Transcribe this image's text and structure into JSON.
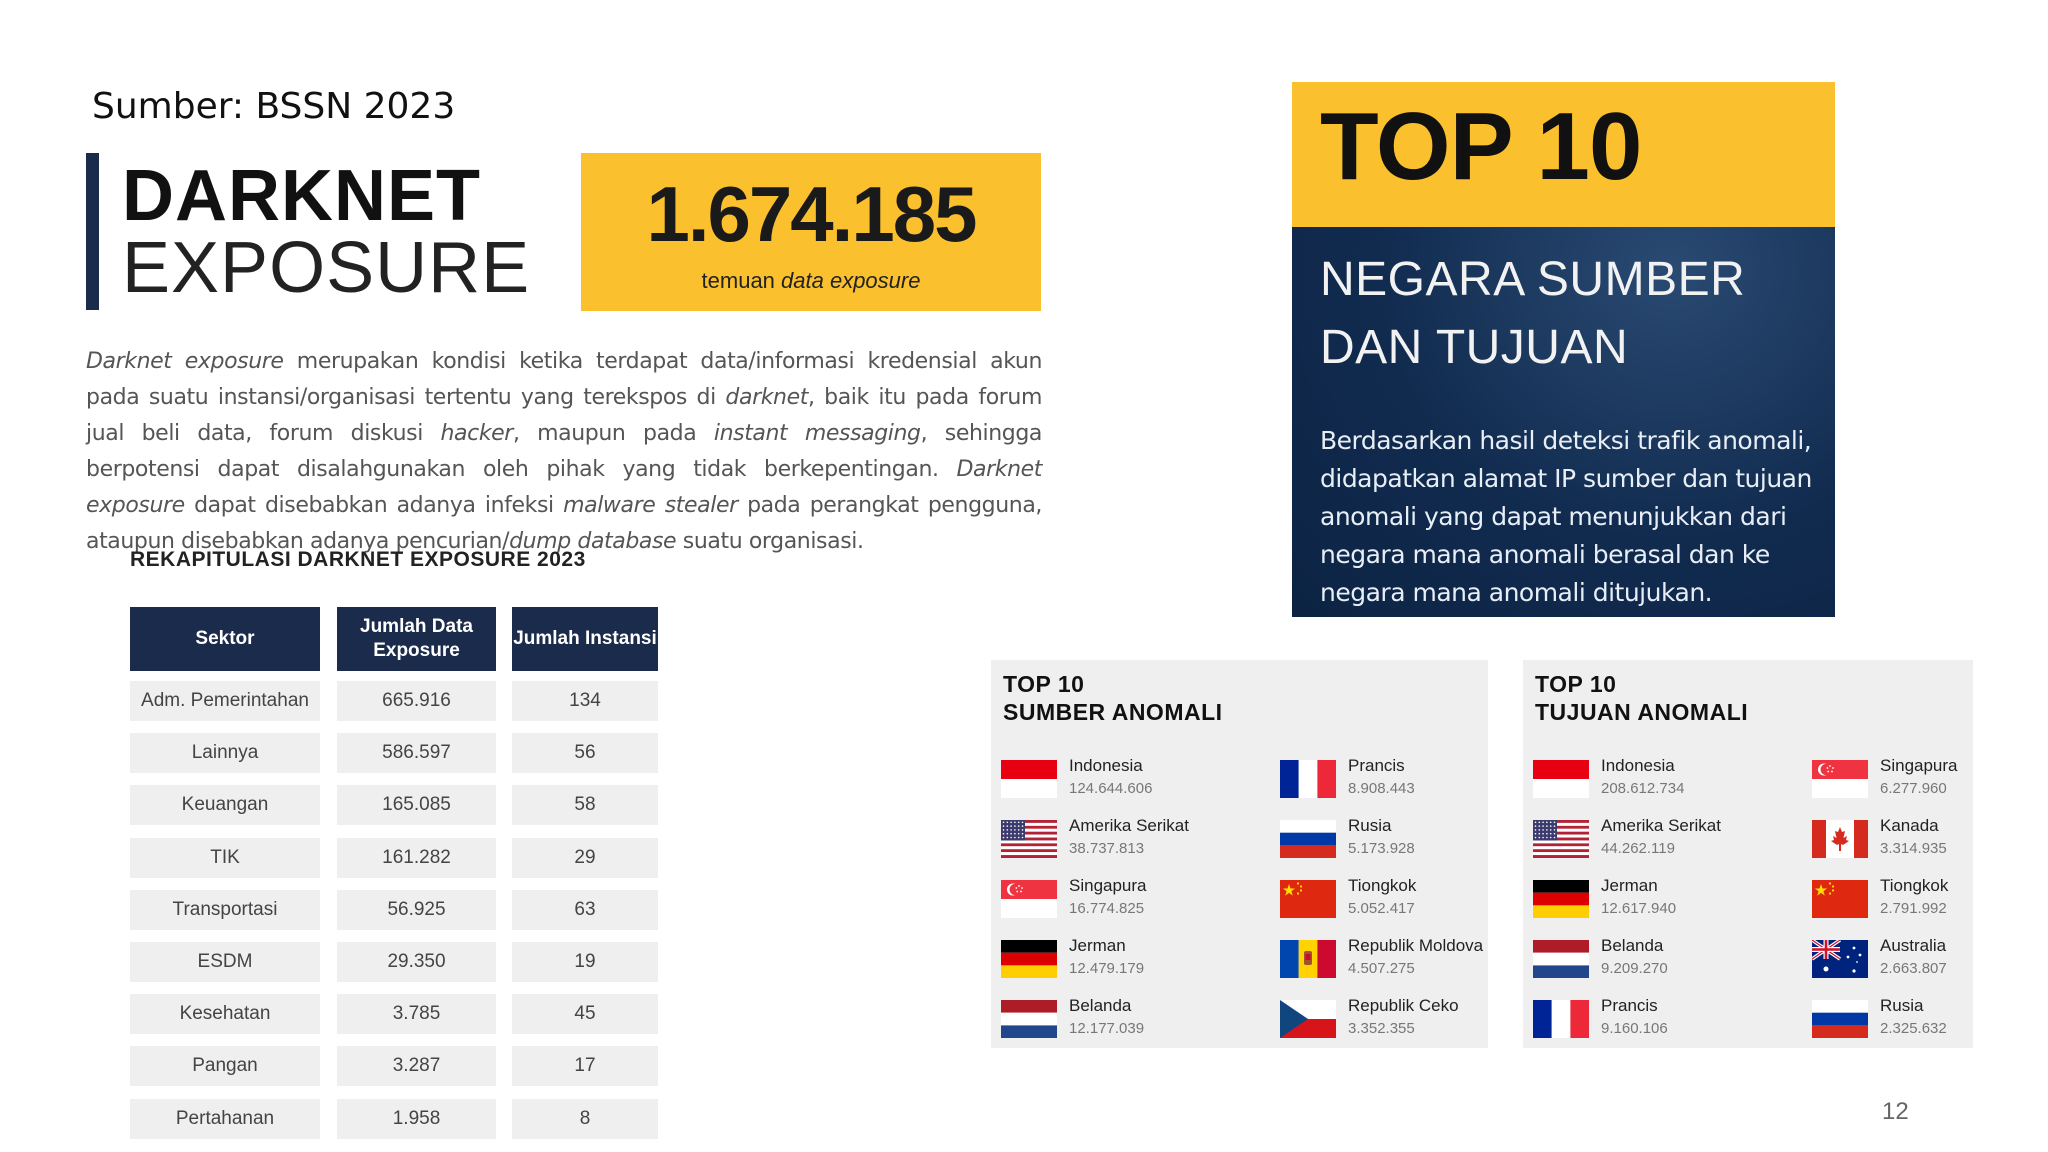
{
  "source": "Sumber: BSSN 2023",
  "title": {
    "line1": "DARKNET",
    "line2": "EXPOSURE"
  },
  "stat": {
    "value": "1.674.185",
    "label_plain": "temuan ",
    "label_italic": "data exposure"
  },
  "description": {
    "s1": "Darknet exposure",
    "s2": " merupakan kondisi ketika terdapat data/informasi kredensial akun pada suatu instansi/organisasi tertentu yang terekspos di ",
    "s3": "darknet",
    "s4": ", baik itu pada forum jual beli data, forum diskusi ",
    "s5": "hacker",
    "s6": ", maupun pada ",
    "s7": "instant messaging",
    "s8": ", sehingga berpotensi dapat disalahgunakan oleh pihak yang tidak berkepentingan. ",
    "s9": "Darknet exposure",
    "s10": " dapat disebabkan adanya infeksi ",
    "s11": "malware stealer",
    "s12": " pada perangkat pengguna, ataupun disebabkan adanya pencurian/",
    "s13": "dump database",
    "s14": " suatu organisasi."
  },
  "recap": {
    "title": "REKAPITULASI DARKNET EXPOSURE 2023",
    "headers": [
      "Sektor",
      "Jumlah Data Exposure",
      "Jumlah Instansi"
    ],
    "rows": [
      [
        "Adm. Pemerintahan",
        "665.916",
        "134"
      ],
      [
        "Lainnya",
        "586.597",
        "56"
      ],
      [
        "Keuangan",
        "165.085",
        "58"
      ],
      [
        "TIK",
        "161.282",
        "29"
      ],
      [
        "Transportasi",
        "56.925",
        "63"
      ],
      [
        "ESDM",
        "29.350",
        "19"
      ],
      [
        "Kesehatan",
        "3.785",
        "45"
      ],
      [
        "Pangan",
        "3.287",
        "17"
      ],
      [
        "Pertahanan",
        "1.958",
        "8"
      ]
    ]
  },
  "banner": {
    "title": "TOP 10",
    "subtitle": "NEGARA SUMBER DAN TUJUAN",
    "description": "Berdasarkan hasil deteksi trafik anomali, didapatkan alamat IP sumber dan tujuan anomali yang dapat menunjukkan dari negara mana anomali berasal dan ke negara mana anomali ditujukan."
  },
  "source_panel": {
    "title_line1": "TOP 10",
    "title_line2": "SUMBER ANOMALI",
    "entries": [
      {
        "country": "Indonesia",
        "value": "124.644.606",
        "flag": "indonesia-flag"
      },
      {
        "country": "Amerika Serikat",
        "value": "38.737.813",
        "flag": "usa-flag"
      },
      {
        "country": "Singapura",
        "value": "16.774.825",
        "flag": "singapore-flag"
      },
      {
        "country": "Jerman",
        "value": "12.479.179",
        "flag": "germany-flag"
      },
      {
        "country": "Belanda",
        "value": "12.177.039",
        "flag": "netherlands-flag"
      },
      {
        "country": "Prancis",
        "value": "8.908.443",
        "flag": "france-flag"
      },
      {
        "country": "Rusia",
        "value": "5.173.928",
        "flag": "russia-flag"
      },
      {
        "country": "Tiongkok",
        "value": "5.052.417",
        "flag": "china-flag"
      },
      {
        "country": "Republik Moldova",
        "value": "4.507.275",
        "flag": "moldova-flag"
      },
      {
        "country": "Republik Ceko",
        "value": "3.352.355",
        "flag": "czech-flag"
      }
    ]
  },
  "dest_panel": {
    "title_line1": "TOP 10",
    "title_line2": "TUJUAN ANOMALI",
    "entries": [
      {
        "country": "Indonesia",
        "value": "208.612.734",
        "flag": "indonesia-flag"
      },
      {
        "country": "Amerika Serikat",
        "value": "44.262.119",
        "flag": "usa-flag"
      },
      {
        "country": "Jerman",
        "value": "12.617.940",
        "flag": "germany-flag"
      },
      {
        "country": "Belanda",
        "value": "9.209.270",
        "flag": "netherlands-flag"
      },
      {
        "country": "Prancis",
        "value": "9.160.106",
        "flag": "france-flag"
      },
      {
        "country": "Singapura",
        "value": "6.277.960",
        "flag": "singapore-flag"
      },
      {
        "country": "Kanada",
        "value": "3.314.935",
        "flag": "canada-flag"
      },
      {
        "country": "Tiongkok",
        "value": "2.791.992",
        "flag": "china-flag"
      },
      {
        "country": "Australia",
        "value": "2.663.807",
        "flag": "australia-flag"
      },
      {
        "country": "Rusia",
        "value": "2.325.632",
        "flag": "russia-flag"
      }
    ]
  },
  "page_number": "12",
  "colors": {
    "navy": "#1b2b4b",
    "yellow": "#fbc02d",
    "cell": "#efefef"
  }
}
